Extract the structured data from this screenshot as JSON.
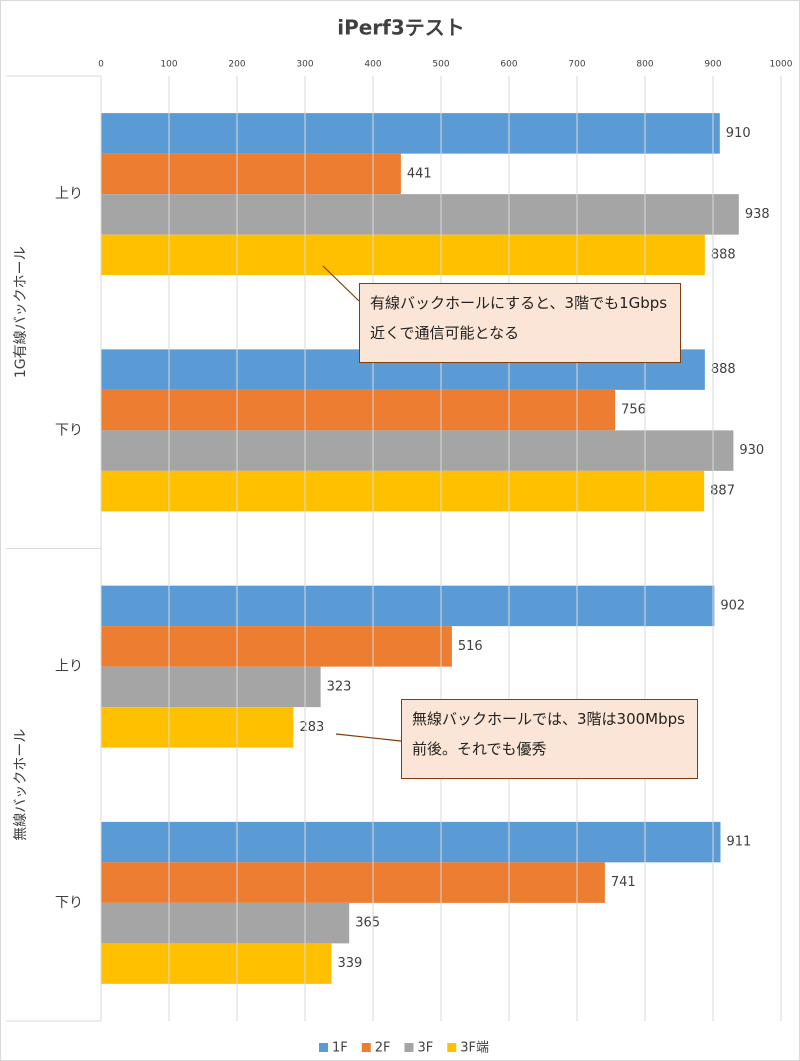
{
  "chart_data": {
    "type": "bar",
    "orientation": "horizontal",
    "title": "iPerf3テスト",
    "groups": [
      {
        "name": "1G有線バックホール",
        "categories": [
          "上り",
          "下り"
        ]
      },
      {
        "name": "無線バックホール",
        "categories": [
          "上り",
          "下り"
        ]
      }
    ],
    "series": [
      {
        "name": "1F",
        "color": "#5b9bd5",
        "values": [
          910,
          888,
          902,
          911
        ]
      },
      {
        "name": "2F",
        "color": "#ed7d31",
        "values": [
          441,
          756,
          516,
          741
        ]
      },
      {
        "name": "3F",
        "color": "#a5a5a5",
        "values": [
          938,
          930,
          323,
          365
        ]
      },
      {
        "name": "3F端",
        "color": "#ffc000",
        "values": [
          888,
          887,
          283,
          339
        ]
      }
    ],
    "xlim": [
      0,
      1000
    ],
    "xticks": [
      0,
      100,
      200,
      300,
      400,
      500,
      600,
      700,
      800,
      900,
      1000
    ],
    "grid": true,
    "legend": "bottom",
    "annotations": [
      {
        "text": "有線バックホールにすると、3階でも1Gbps近くで通信可能となる"
      },
      {
        "text": "無線バックホールでは、3階は300Mbps前後。それでも優秀"
      }
    ]
  }
}
